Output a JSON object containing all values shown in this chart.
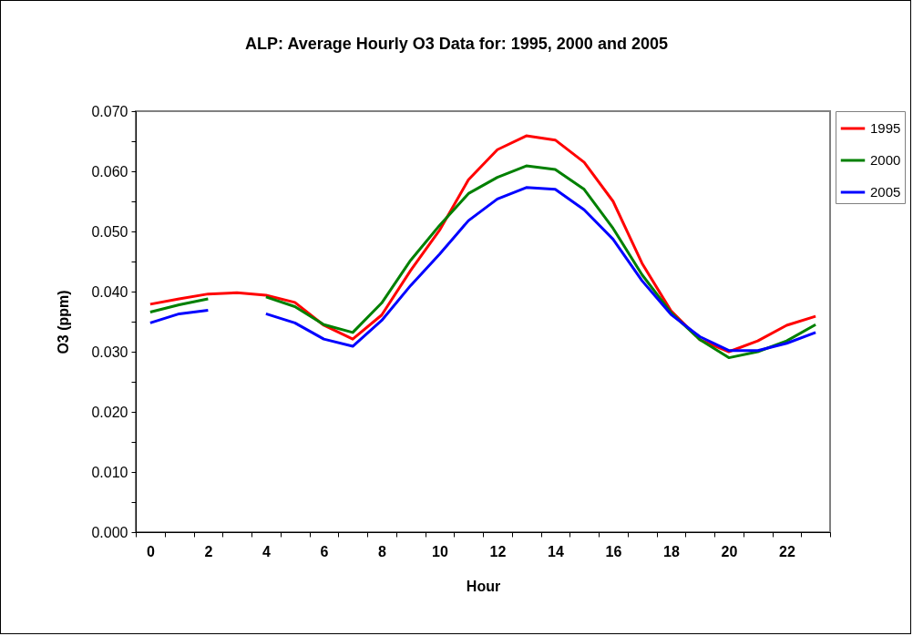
{
  "chart_data": {
    "type": "line",
    "title": "ALP: Average Hourly O3 Data for: 1995, 2000 and 2005",
    "xlabel": "Hour",
    "ylabel": "O3 (ppm)",
    "categories": [
      "0",
      null,
      "2",
      null,
      "4",
      null,
      "6",
      null,
      "8",
      null,
      "10",
      null,
      "12",
      null,
      "14",
      null,
      "16",
      null,
      "18",
      null,
      "20",
      null,
      "22",
      null
    ],
    "series": [
      {
        "name": "1995",
        "color": "#ff0000",
        "values": [
          0.0379,
          0.0388,
          0.0396,
          0.0398,
          0.0394,
          0.0382,
          0.0344,
          0.0321,
          0.0361,
          0.0435,
          0.0502,
          0.0586,
          0.0636,
          0.0659,
          0.0652,
          0.0615,
          0.055,
          0.0447,
          0.0368,
          0.032,
          0.03,
          0.0318,
          0.0344,
          0.0359
        ]
      },
      {
        "name": "2000",
        "color": "#008000",
        "values": [
          0.0366,
          0.0378,
          0.0388,
          null,
          0.0391,
          0.0375,
          0.0345,
          0.0332,
          0.0381,
          0.0452,
          0.051,
          0.0563,
          0.059,
          0.0609,
          0.0603,
          0.057,
          0.0505,
          0.0428,
          0.0365,
          0.032,
          0.029,
          0.03,
          0.0318,
          0.0345
        ]
      },
      {
        "name": "2005",
        "color": "#0000ff",
        "values": [
          0.0348,
          0.0363,
          0.0369,
          null,
          0.0363,
          0.0348,
          0.0321,
          0.0309,
          0.0352,
          0.041,
          0.0462,
          0.0518,
          0.0554,
          0.0573,
          0.057,
          0.0536,
          0.0487,
          0.0418,
          0.0362,
          0.0325,
          0.0302,
          0.0302,
          0.0314,
          0.0332
        ]
      }
    ],
    "ylim": [
      0,
      0.07
    ],
    "yticks": [
      {
        "value": 0,
        "label": "0.000"
      },
      {
        "value": 0.005,
        "label": null
      },
      {
        "value": 0.01,
        "label": "0.010"
      },
      {
        "value": 0.015,
        "label": null
      },
      {
        "value": 0.02,
        "label": "0.020"
      },
      {
        "value": 0.025,
        "label": null
      },
      {
        "value": 0.03,
        "label": "0.030"
      },
      {
        "value": 0.035,
        "label": null
      },
      {
        "value": 0.04,
        "label": "0.040"
      },
      {
        "value": 0.045,
        "label": null
      },
      {
        "value": 0.05,
        "label": "0.050"
      },
      {
        "value": 0.055,
        "label": null
      },
      {
        "value": 0.06,
        "label": "0.060"
      },
      {
        "value": 0.065,
        "label": null
      },
      {
        "value": 0.07,
        "label": "0.070"
      }
    ],
    "grid": false,
    "legend": "right",
    "line_style": "solid",
    "marker": "none"
  }
}
